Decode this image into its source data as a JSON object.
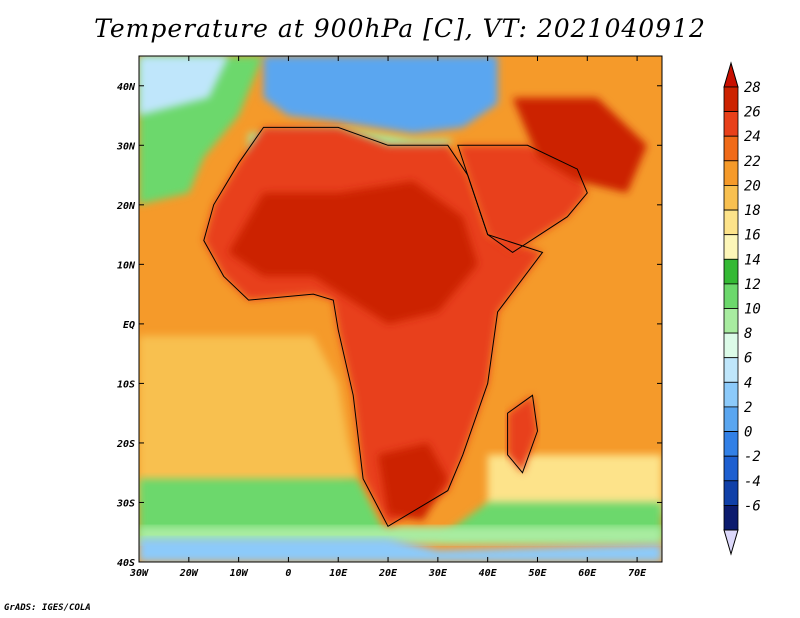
{
  "title": "Temperature at 900hPa [C], VT: 2021040912",
  "credit": "GrADS: IGES/COLA",
  "map": {
    "lon_range": [
      -30,
      75
    ],
    "lat_range": [
      -40,
      45
    ],
    "lon_ticks": [
      {
        "lon": -30,
        "label": "30W"
      },
      {
        "lon": -20,
        "label": "20W"
      },
      {
        "lon": -10,
        "label": "10W"
      },
      {
        "lon": 0,
        "label": "0"
      },
      {
        "lon": 10,
        "label": "10E"
      },
      {
        "lon": 20,
        "label": "20E"
      },
      {
        "lon": 30,
        "label": "30E"
      },
      {
        "lon": 40,
        "label": "40E"
      },
      {
        "lon": 50,
        "label": "50E"
      },
      {
        "lon": 60,
        "label": "60E"
      },
      {
        "lon": 70,
        "label": "70E"
      }
    ],
    "lat_ticks": [
      {
        "lat": 40,
        "label": "40N"
      },
      {
        "lat": 30,
        "label": "30N"
      },
      {
        "lat": 20,
        "label": "20N"
      },
      {
        "lat": 10,
        "label": "10N"
      },
      {
        "lat": 0,
        "label": "EQ"
      },
      {
        "lat": -10,
        "label": "10S"
      },
      {
        "lat": -20,
        "label": "20S"
      },
      {
        "lat": -30,
        "label": "30S"
      },
      {
        "lat": -40,
        "label": "40S"
      }
    ]
  },
  "colorbar": {
    "labels": [
      "28",
      "26",
      "24",
      "22",
      "20",
      "18",
      "16",
      "14",
      "12",
      "10",
      "8",
      "6",
      "4",
      "2",
      "0",
      "-2",
      "-4",
      "-6"
    ],
    "colors": [
      "#cc2200",
      "#e8401a",
      "#f06a18",
      "#f59a2a",
      "#f8c050",
      "#fde38a",
      "#fdf6b8",
      "#34b934",
      "#6cd86c",
      "#a8eca0",
      "#dcfbe8",
      "#bfe6fb",
      "#8ccafa",
      "#5aa6f0",
      "#3280e6",
      "#1d5fd0",
      "#1040a8",
      "#0c1b6e"
    ],
    "over_color": "#c80f00",
    "under_color": "#dcd8fa"
  },
  "regions": [
    {
      "name": "ocean-background",
      "color": "#f59a2a",
      "points": [
        [
          -30,
          45
        ],
        [
          75,
          45
        ],
        [
          75,
          -40
        ],
        [
          -30,
          -40
        ]
      ]
    },
    {
      "name": "south-atlantic-warm",
      "color": "#f8c050",
      "points": [
        [
          -30,
          -2
        ],
        [
          5,
          -2
        ],
        [
          10,
          -10
        ],
        [
          12,
          -20
        ],
        [
          14,
          -26
        ],
        [
          5,
          -30
        ],
        [
          -30,
          -30
        ]
      ]
    },
    {
      "name": "south-indian-warm",
      "color": "#fde38a",
      "points": [
        [
          40,
          -22
        ],
        [
          75,
          -22
        ],
        [
          75,
          -32
        ],
        [
          40,
          -32
        ]
      ]
    },
    {
      "name": "southern-ocean-green",
      "color": "#6cd86c",
      "points": [
        [
          -30,
          -26
        ],
        [
          14,
          -26
        ],
        [
          20,
          -36
        ],
        [
          30,
          -36
        ],
        [
          40,
          -30
        ],
        [
          75,
          -30
        ],
        [
          75,
          -36
        ],
        [
          -30,
          -36
        ]
      ]
    },
    {
      "name": "southern-ocean-cool",
      "color": "#a8eca0",
      "points": [
        [
          -30,
          -34
        ],
        [
          75,
          -34
        ],
        [
          75,
          -37
        ],
        [
          -30,
          -37
        ]
      ]
    },
    {
      "name": "southern-ocean-blue",
      "color": "#8ccafa",
      "points": [
        [
          -30,
          -36
        ],
        [
          20,
          -36
        ],
        [
          30,
          -38
        ],
        [
          75,
          -37
        ],
        [
          75,
          -40
        ],
        [
          -30,
          -40
        ]
      ]
    },
    {
      "name": "north-atlantic-green",
      "color": "#6cd86c",
      "points": [
        [
          -30,
          45
        ],
        [
          -5,
          45
        ],
        [
          -10,
          35
        ],
        [
          -17,
          28
        ],
        [
          -20,
          22
        ],
        [
          -30,
          20
        ]
      ]
    },
    {
      "name": "north-atlantic-cool",
      "color": "#bfe6fb",
      "points": [
        [
          -30,
          45
        ],
        [
          -12,
          45
        ],
        [
          -16,
          38
        ],
        [
          -30,
          35
        ]
      ]
    },
    {
      "name": "mediterranean-blue",
      "color": "#5aa6f0",
      "points": [
        [
          -5,
          45
        ],
        [
          42,
          45
        ],
        [
          42,
          37
        ],
        [
          35,
          33
        ],
        [
          25,
          32
        ],
        [
          10,
          34
        ],
        [
          0,
          35
        ],
        [
          -5,
          38
        ]
      ]
    },
    {
      "name": "north-africa-cool-band",
      "color": "#a8eca0",
      "points": [
        [
          -8,
          32
        ],
        [
          10,
          33
        ],
        [
          25,
          31
        ],
        [
          33,
          31
        ],
        [
          30,
          28
        ],
        [
          10,
          28
        ],
        [
          -8,
          28
        ]
      ]
    },
    {
      "name": "africa-land-hot",
      "color": "#e8401a",
      "points": [
        [
          -17,
          14
        ],
        [
          -15,
          20
        ],
        [
          -10,
          27
        ],
        [
          -5,
          33
        ],
        [
          10,
          33
        ],
        [
          20,
          30
        ],
        [
          32,
          30
        ],
        [
          36,
          25
        ],
        [
          40,
          15
        ],
        [
          51,
          12
        ],
        [
          42,
          2
        ],
        [
          40,
          -10
        ],
        [
          35,
          -22
        ],
        [
          32,
          -28
        ],
        [
          20,
          -34
        ],
        [
          15,
          -26
        ],
        [
          13,
          -12
        ],
        [
          10,
          -1
        ],
        [
          9,
          4
        ],
        [
          5,
          5
        ],
        [
          -8,
          4
        ],
        [
          -13,
          8
        ]
      ]
    },
    {
      "name": "sahel-core",
      "color": "#cc2200",
      "points": [
        [
          -12,
          12
        ],
        [
          -5,
          22
        ],
        [
          10,
          22
        ],
        [
          25,
          24
        ],
        [
          35,
          18
        ],
        [
          38,
          10
        ],
        [
          30,
          2
        ],
        [
          20,
          0
        ],
        [
          5,
          8
        ],
        [
          -5,
          8
        ]
      ]
    },
    {
      "name": "arabia-hot",
      "color": "#e8401a",
      "points": [
        [
          34,
          30
        ],
        [
          48,
          30
        ],
        [
          58,
          26
        ],
        [
          60,
          22
        ],
        [
          56,
          18
        ],
        [
          45,
          12
        ],
        [
          40,
          15
        ],
        [
          36,
          25
        ]
      ]
    },
    {
      "name": "persia-hot",
      "color": "#cc2200",
      "points": [
        [
          45,
          38
        ],
        [
          62,
          38
        ],
        [
          72,
          30
        ],
        [
          68,
          22
        ],
        [
          58,
          24
        ],
        [
          50,
          28
        ]
      ]
    },
    {
      "name": "madagascar-hot",
      "color": "#e8401a",
      "points": [
        [
          44,
          -15
        ],
        [
          49,
          -12
        ],
        [
          50,
          -18
        ],
        [
          47,
          -25
        ],
        [
          44,
          -22
        ]
      ]
    },
    {
      "name": "southern-africa-core",
      "color": "#cc2200",
      "points": [
        [
          18,
          -22
        ],
        [
          28,
          -20
        ],
        [
          32,
          -26
        ],
        [
          27,
          -33
        ],
        [
          20,
          -32
        ]
      ]
    }
  ]
}
